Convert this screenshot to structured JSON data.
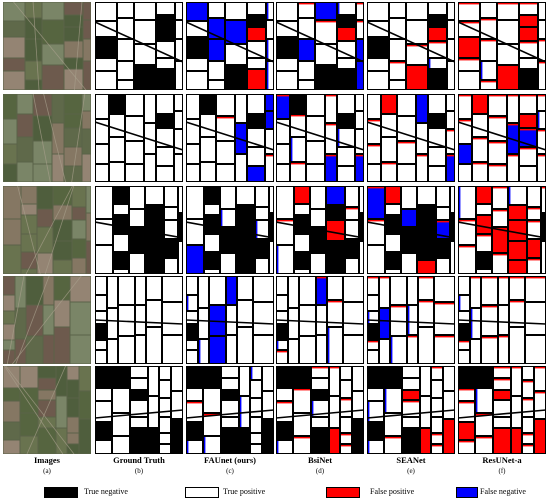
{
  "columns": [
    {
      "title": "Images",
      "sub": "(a)",
      "kind": "image"
    },
    {
      "title": "Ground Truth",
      "sub": "(b)",
      "kind": "gt"
    },
    {
      "title": "FAUnet (ours)",
      "sub": "(c)",
      "kind": "pred",
      "fp": 0.03,
      "fn": 0.1
    },
    {
      "title": "BsiNet",
      "sub": "(d)",
      "kind": "pred",
      "fp": 0.1,
      "fn": 0.07
    },
    {
      "title": "SEANet",
      "sub": "(e)",
      "kind": "pred",
      "fp": 0.14,
      "fn": 0.07
    },
    {
      "title": "ResUNet-a",
      "sub": "(f)",
      "kind": "pred",
      "fp": 0.3,
      "fn": 0.05
    }
  ],
  "rows": 5,
  "legend": [
    {
      "label": "True negative",
      "color": "#000000"
    },
    {
      "label": "True positive",
      "color": "#ffffff"
    },
    {
      "label": "False positive",
      "color": "#ff0000"
    },
    {
      "label": "False negative",
      "color": "#0000ff"
    }
  ],
  "colors": {
    "true_negative": "#000000",
    "true_positive": "#ffffff",
    "false_positive": "#ff0000",
    "false_negative": "#0000ff"
  }
}
